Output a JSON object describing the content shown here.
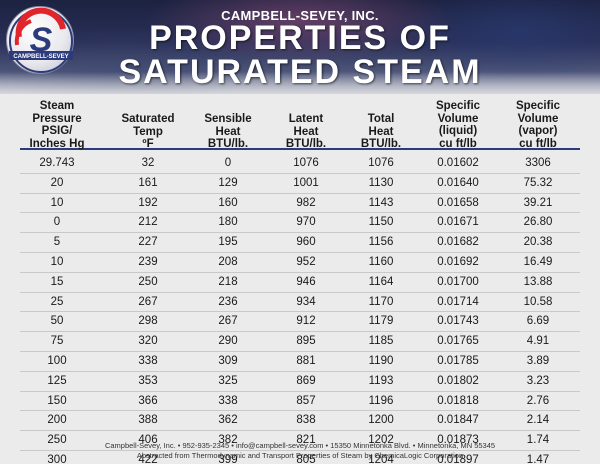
{
  "header": {
    "company": "CAMPBELL-SEVEY, INC.",
    "title_line1": "PROPERTIES OF",
    "title_line2": "SATURATED STEAM",
    "logo": {
      "letter": "S",
      "text": "CAMPBELL-SEVEY",
      "accent_color": "#e0262b",
      "ring_color": "#2d3b7c"
    }
  },
  "table": {
    "columns": [
      {
        "lines": [
          "Steam",
          "Pressure",
          "PSIG/",
          "Inches Hg"
        ]
      },
      {
        "lines": [
          "Saturated",
          "Temp",
          "ºF"
        ]
      },
      {
        "lines": [
          "Sensible",
          "Heat",
          "BTU/lb."
        ]
      },
      {
        "lines": [
          "Latent",
          "Heat",
          "BTU/lb."
        ]
      },
      {
        "lines": [
          "Total",
          "Heat",
          "BTU/lb."
        ]
      },
      {
        "lines": [
          "Specific",
          "Volume",
          "(liquid)",
          "cu ft/lb"
        ]
      },
      {
        "lines": [
          "Specific",
          "Volume",
          "(vapor)",
          "cu ft/lb"
        ]
      }
    ],
    "rows": [
      [
        "29.743",
        "32",
        "0",
        "1076",
        "1076",
        "0.01602",
        "3306"
      ],
      [
        "20",
        "161",
        "129",
        "1001",
        "1130",
        "0.01640",
        "75.32"
      ],
      [
        "10",
        "192",
        "160",
        "982",
        "1143",
        "0.01658",
        "39.21"
      ],
      [
        "0",
        "212",
        "180",
        "970",
        "1150",
        "0.01671",
        "26.80"
      ],
      [
        "5",
        "227",
        "195",
        "960",
        "1156",
        "0.01682",
        "20.38"
      ],
      [
        "10",
        "239",
        "208",
        "952",
        "1160",
        "0.01692",
        "16.49"
      ],
      [
        "15",
        "250",
        "218",
        "946",
        "1164",
        "0.01700",
        "13.88"
      ],
      [
        "25",
        "267",
        "236",
        "934",
        "1170",
        "0.01714",
        "10.58"
      ],
      [
        "50",
        "298",
        "267",
        "912",
        "1179",
        "0.01743",
        "6.69"
      ],
      [
        "75",
        "320",
        "290",
        "895",
        "1185",
        "0.01765",
        "4.91"
      ],
      [
        "100",
        "338",
        "309",
        "881",
        "1190",
        "0.01785",
        "3.89"
      ],
      [
        "125",
        "353",
        "325",
        "869",
        "1193",
        "0.01802",
        "3.23"
      ],
      [
        "150",
        "366",
        "338",
        "857",
        "1196",
        "0.01818",
        "2.76"
      ],
      [
        "200",
        "388",
        "362",
        "838",
        "1200",
        "0.01847",
        "2.14"
      ],
      [
        "250",
        "406",
        "382",
        "821",
        "1202",
        "0.01873",
        "1.74"
      ],
      [
        "300",
        "422",
        "399",
        "805",
        "1204",
        "0.01897",
        "1.47"
      ]
    ]
  },
  "footer": {
    "line1": "Campbell-Sevey, Inc.  •  952-935-2345  •  info@campbell-sevey.com  •  15350 Minnetonka Blvd.  •  Minnetonka, MN 55345",
    "line2": "Abstracted from Thermodynamic and Transport Properties of Steam by ChemicaLogic Corporation"
  }
}
